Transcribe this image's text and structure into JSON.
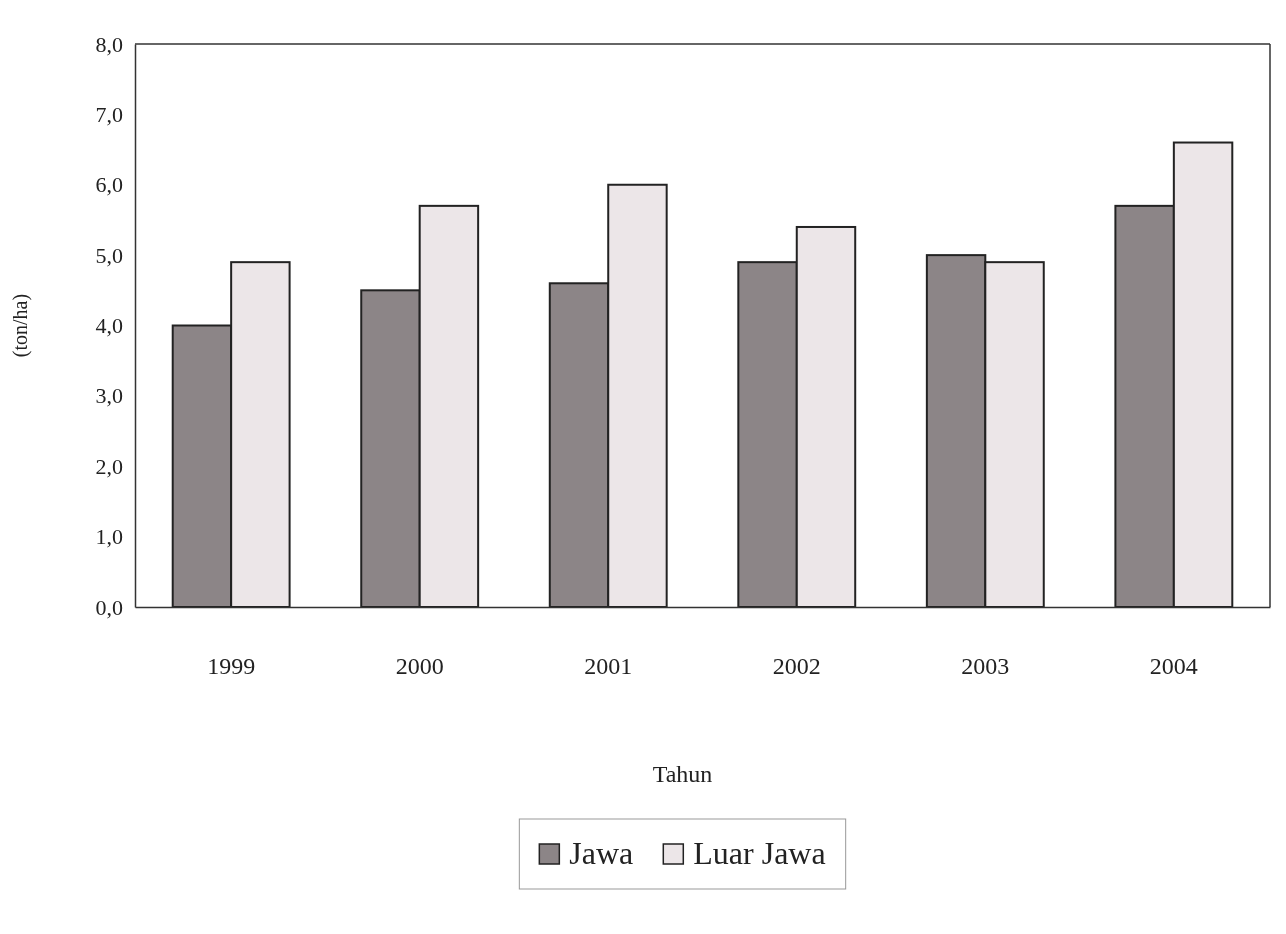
{
  "chart_data": {
    "type": "bar",
    "categories": [
      "1999",
      "2000",
      "2001",
      "2002",
      "2003",
      "2004"
    ],
    "series": [
      {
        "name": "Jawa",
        "color": "#8c8587",
        "values": [
          4.0,
          4.5,
          4.6,
          4.9,
          5.0,
          5.7
        ]
      },
      {
        "name": "Luar Jawa",
        "color": "#ece6e8",
        "values": [
          4.9,
          5.7,
          6.0,
          5.4,
          4.9,
          6.6
        ]
      }
    ],
    "xlabel": "Tahun",
    "ylabel": "(ton/ha)",
    "ylim": [
      0,
      8
    ],
    "yticks": [
      {
        "value": 0,
        "label": "0,0"
      },
      {
        "value": 1,
        "label": "1,0"
      },
      {
        "value": 2,
        "label": "2,0"
      },
      {
        "value": 3,
        "label": "3,0"
      },
      {
        "value": 4,
        "label": "4,0"
      },
      {
        "value": 5,
        "label": "5,0"
      },
      {
        "value": 6,
        "label": "6,0"
      },
      {
        "value": 7,
        "label": "7,0"
      },
      {
        "value": 8,
        "label": "8,0"
      }
    ],
    "grid": false,
    "legend": "bottom"
  }
}
